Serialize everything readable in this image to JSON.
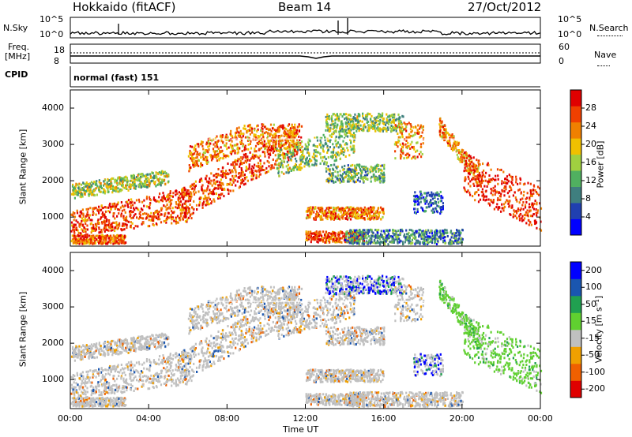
{
  "header": {
    "station": "Hokkaido (fitACF)",
    "beam": "Beam 14",
    "date": "27/Oct/2012"
  },
  "aux": {
    "nsky_label": "N.Sky",
    "nsky_ticks": [
      "10^5",
      "10^0"
    ],
    "nsearch_label": "N.Search",
    "nsearch_ticks": [
      "10^5",
      "10^0"
    ],
    "freq_label_1": "Freq.",
    "freq_label_2": "[MHz]",
    "freq_ticks": [
      "18",
      "8"
    ],
    "nave_label": "Nave",
    "nave_ticks": [
      "60",
      "0"
    ],
    "cpid_label": "CPID",
    "cpid_value": "normal (fast) 151"
  },
  "chart_data": [
    {
      "type": "heatmap",
      "ylabel": "Slant Range [km]",
      "xlabel": "",
      "xticks": [
        "00:00",
        "04:00",
        "08:00",
        "12:00",
        "16:00",
        "20:00",
        "00:00"
      ],
      "x_range_hours": [
        0,
        24
      ],
      "yticks": [
        1000,
        2000,
        3000,
        4000
      ],
      "ylim": [
        200,
        4500
      ],
      "colorbar": {
        "label": "Power [dB]",
        "ticks": [
          4,
          8,
          12,
          16,
          20,
          24,
          28
        ],
        "range": [
          0,
          32
        ],
        "colors": [
          "#0000ff",
          "#2040b0",
          "#3f7f7f",
          "#50b060",
          "#a0d040",
          "#f0c000",
          "#f08000",
          "#f04000",
          "#e00000"
        ]
      },
      "features": [
        {
          "desc": "strong band",
          "t": [
            0,
            6
          ],
          "range": [
            600,
            1700
          ]
        },
        {
          "desc": "strong band",
          "t": [
            6,
            12
          ],
          "range": [
            1300,
            3500
          ]
        },
        {
          "desc": "moderate patches",
          "t": [
            12,
            16
          ],
          "range": [
            400,
            1300
          ]
        },
        {
          "desc": "strong band",
          "t": [
            20,
            24
          ],
          "range": [
            700,
            2600
          ]
        }
      ]
    },
    {
      "type": "heatmap",
      "ylabel": "Slant Range [km]",
      "xlabel": "Time UT",
      "xticks": [
        "00:00",
        "04:00",
        "08:00",
        "12:00",
        "16:00",
        "20:00",
        "00:00"
      ],
      "x_range_hours": [
        0,
        24
      ],
      "yticks": [
        1000,
        2000,
        3000,
        4000
      ],
      "ylim": [
        200,
        4500
      ],
      "colorbar": {
        "label": "Velocity [m s⁻¹]",
        "ticks": [
          200,
          100,
          50,
          15,
          -15,
          -50,
          -100,
          -200
        ],
        "colors": [
          "#0000ff",
          "#1a56b0",
          "#20a050",
          "#60d030",
          "#c0c0c0",
          "#f0a000",
          "#f06000",
          "#e00000"
        ]
      }
    }
  ]
}
